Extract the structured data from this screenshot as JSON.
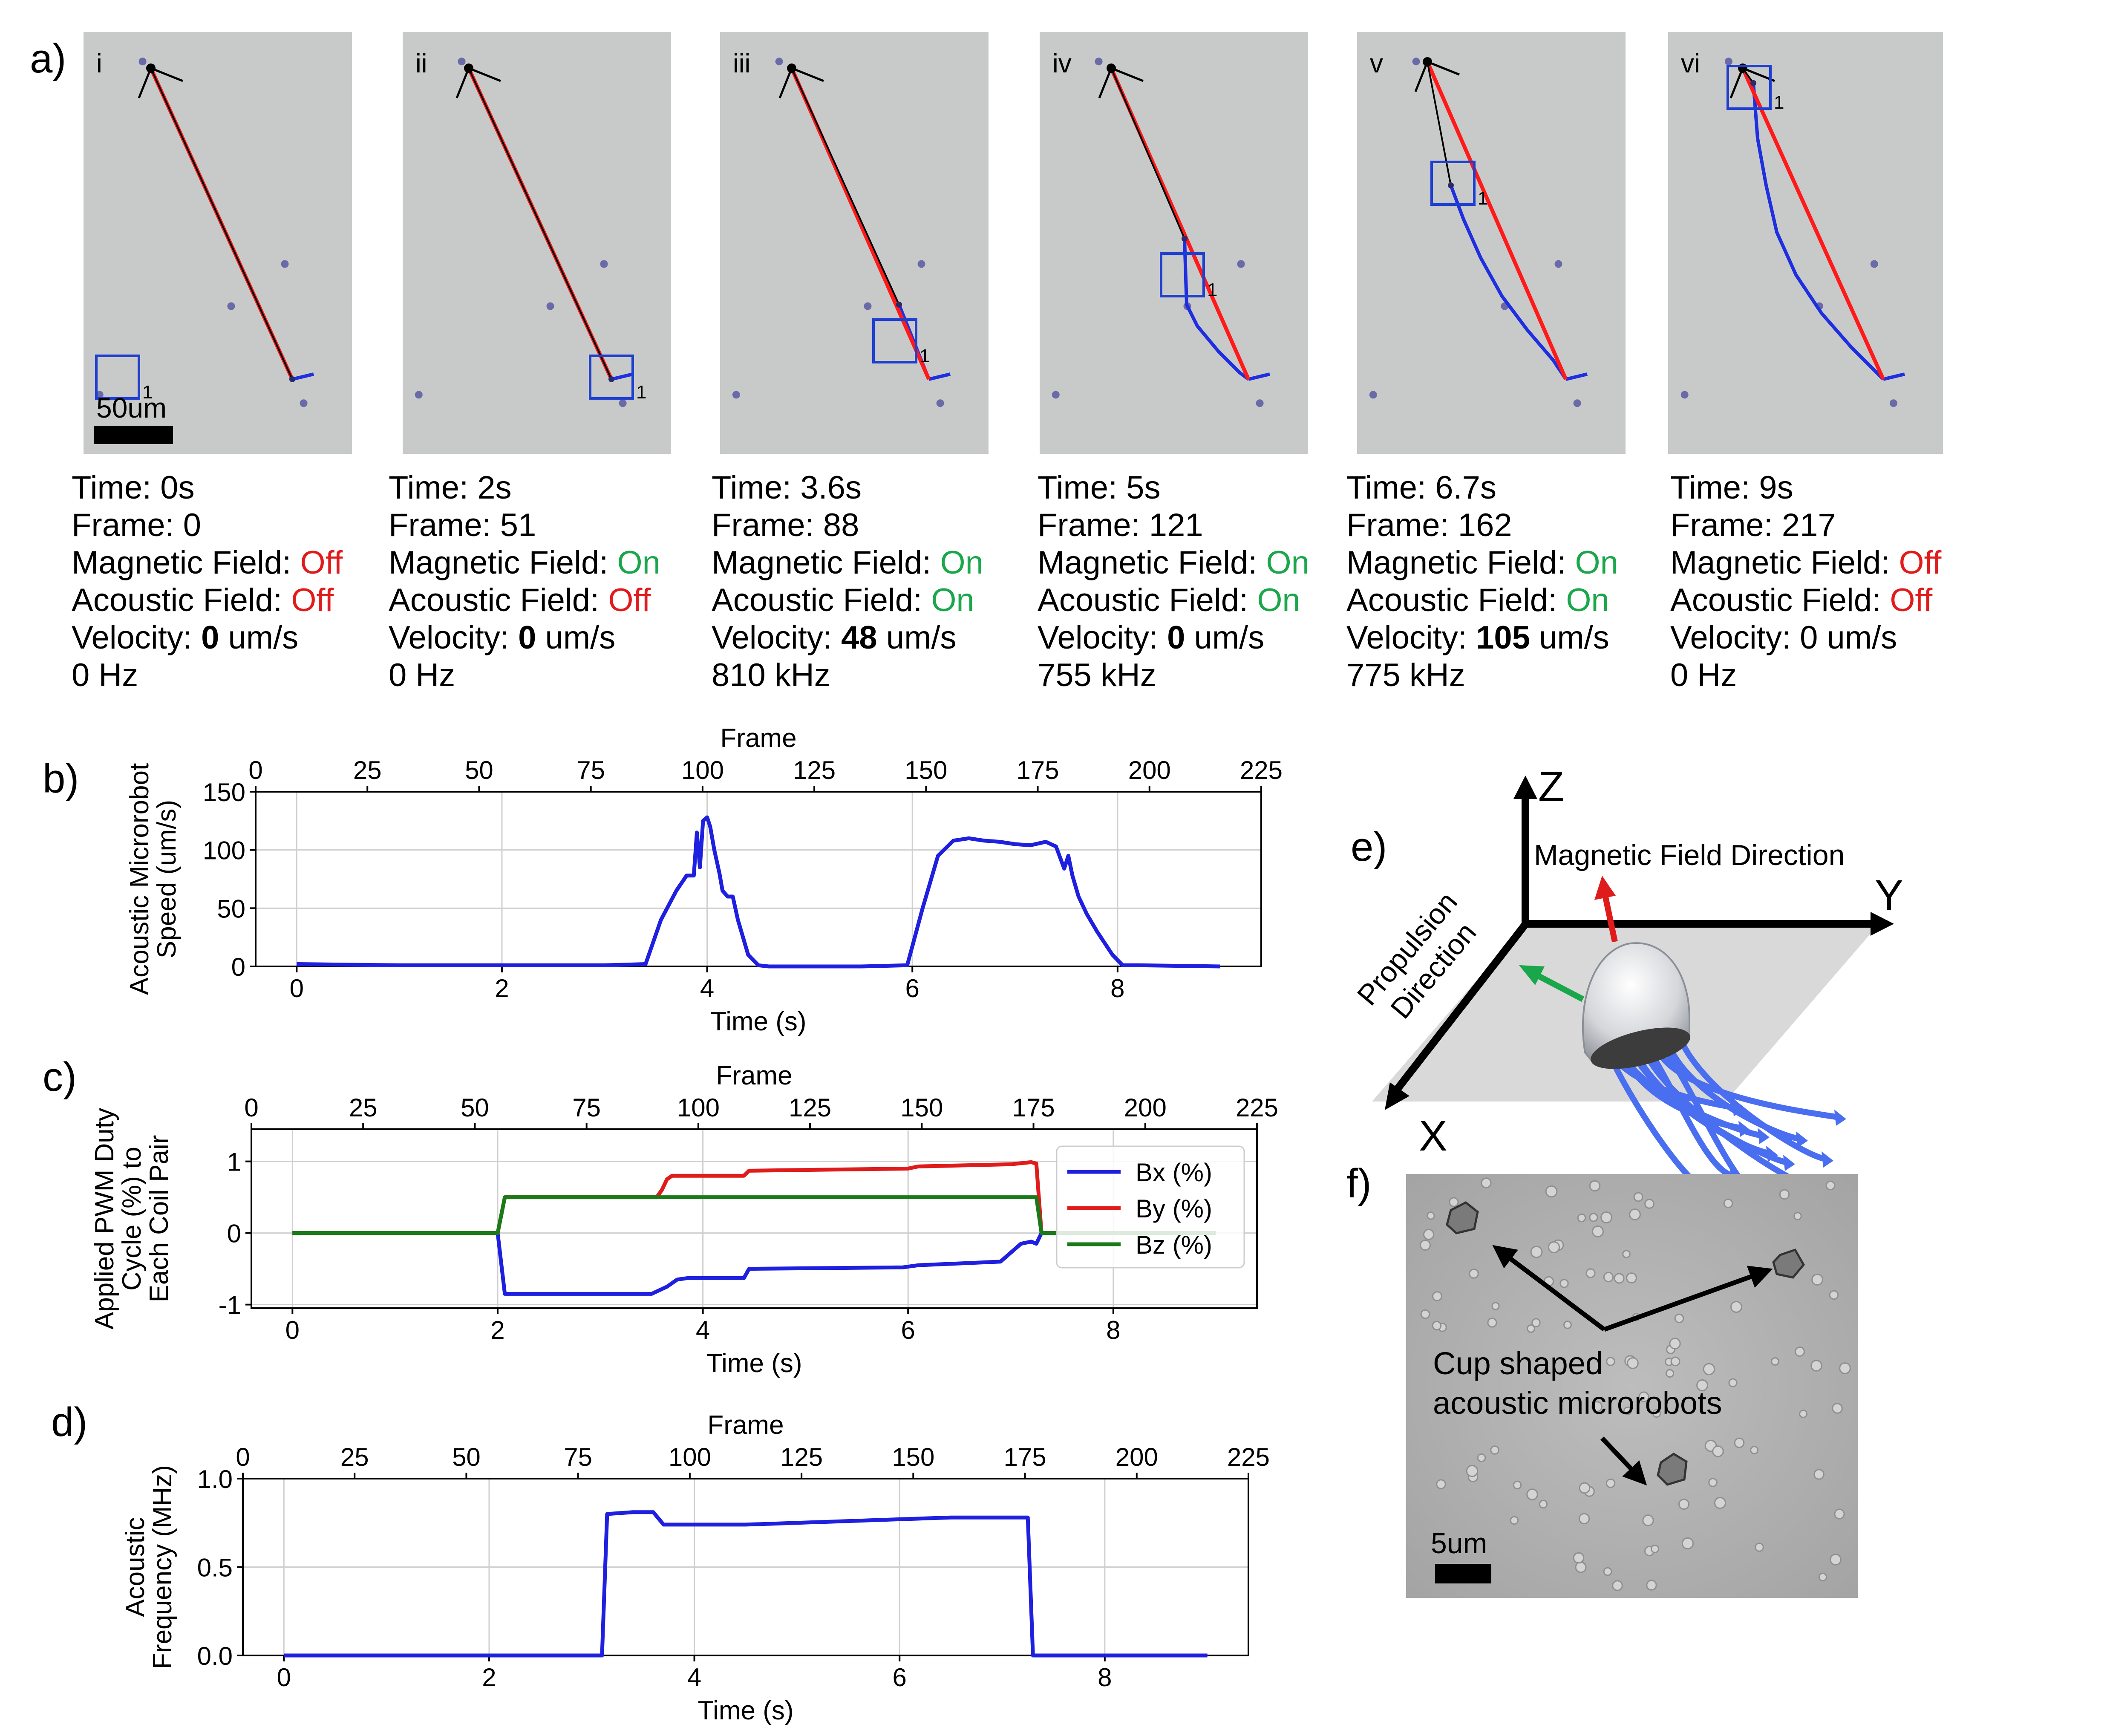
{
  "figure": {
    "panel_labels": {
      "a": "a)",
      "b": "b)",
      "c": "c)",
      "d": "d)",
      "e": "e)",
      "f": "f)"
    },
    "panel_a": {
      "scale_bar_label": "50um",
      "track_id": "1",
      "field_labels": {
        "time": "Time: ",
        "frame": "Frame: ",
        "magnetic": "Magnetic Field: ",
        "acoustic": "Acoustic Field: ",
        "velocity": "Velocity: ",
        "velocity_unit": " um/s"
      },
      "colors": {
        "on": "#1aa64a",
        "off": "#e01b1b",
        "trajectory_red": "#ff1a1a",
        "trajectory_black": "#000000",
        "path_blue": "#1f2fe0",
        "box_blue": "#1f3fd0"
      },
      "frames": [
        {
          "roman": "i",
          "time": "0s",
          "frame": "0",
          "magnetic": "Off",
          "acoustic": "Off",
          "velocity": "0",
          "velocity_bold": true,
          "freq": "0 Hz"
        },
        {
          "roman": "ii",
          "time": "2s",
          "frame": "51",
          "magnetic": "On",
          "acoustic": "Off",
          "velocity": "0",
          "velocity_bold": true,
          "freq": "0 Hz"
        },
        {
          "roman": "iii",
          "time": "3.6s",
          "frame": "88",
          "magnetic": "On",
          "acoustic": "On",
          "velocity": "48",
          "velocity_bold": true,
          "freq": "810 kHz"
        },
        {
          "roman": "iv",
          "time": "5s",
          "frame": "121",
          "magnetic": "On",
          "acoustic": "On",
          "velocity": "0",
          "velocity_bold": true,
          "freq": "755 kHz"
        },
        {
          "roman": "v",
          "time": "6.7s",
          "frame": "162",
          "magnetic": "On",
          "acoustic": "On",
          "velocity": "105",
          "velocity_bold": true,
          "freq": "775 kHz"
        },
        {
          "roman": "vi",
          "time": "9s",
          "frame": "217",
          "magnetic": "Off",
          "acoustic": "Off",
          "velocity": "0",
          "velocity_bold": false,
          "freq": "0 Hz"
        }
      ]
    },
    "panel_e": {
      "axis_x": "X",
      "axis_y": "Y",
      "axis_z": "Z",
      "magnetic_label": "Magnetic Field Direction",
      "propulsion_line1": "Propulsion",
      "propulsion_line2": "Direction",
      "colors": {
        "magnetic": "#e8501e",
        "propulsion": "#1aa64a",
        "flagella": "#4a6ef0"
      }
    },
    "panel_f": {
      "label_line1": "Cup shaped",
      "label_line2": "acoustic microrobots",
      "scale_bar_label": "5um"
    }
  },
  "chart_data": [
    {
      "id": "b",
      "type": "line",
      "title": "",
      "xlabel": "Time (s)",
      "top_xlabel": "Frame",
      "ylabel_lines": [
        "Acoustic Microrobot",
        "Speed (um/s)"
      ],
      "xlim": [
        -0.4,
        9.4
      ],
      "ylim": [
        0,
        150
      ],
      "xticks": [
        0,
        2,
        4,
        6,
        8
      ],
      "yticks": [
        0,
        50,
        100,
        150
      ],
      "top_ticks": [
        0,
        25,
        50,
        75,
        100,
        125,
        150,
        175,
        200,
        225
      ],
      "top_range": [
        0,
        225
      ],
      "grid": true,
      "series": [
        {
          "name": "Speed",
          "color": "#1f1fe0",
          "x": [
            0,
            1,
            2,
            3,
            3.4,
            3.55,
            3.7,
            3.8,
            3.87,
            3.9,
            3.93,
            3.96,
            4.0,
            4.03,
            4.07,
            4.12,
            4.15,
            4.2,
            4.25,
            4.3,
            4.4,
            4.5,
            4.6,
            5.5,
            5.95,
            6.1,
            6.25,
            6.4,
            6.55,
            6.7,
            6.85,
            7.0,
            7.15,
            7.3,
            7.4,
            7.48,
            7.52,
            7.56,
            7.62,
            7.7,
            7.8,
            7.95,
            8.05,
            8.2,
            9.0
          ],
          "y": [
            2,
            1,
            1,
            1,
            2,
            40,
            65,
            78,
            78,
            115,
            85,
            125,
            128,
            120,
            100,
            80,
            65,
            60,
            60,
            40,
            10,
            1,
            0,
            0,
            1,
            50,
            95,
            108,
            110,
            108,
            107,
            105,
            104,
            107,
            103,
            84,
            95,
            78,
            60,
            45,
            30,
            10,
            1,
            1,
            0
          ]
        }
      ]
    },
    {
      "id": "c",
      "type": "line",
      "title": "",
      "xlabel": "Time (s)",
      "top_xlabel": "Frame",
      "ylabel_lines": [
        "Applied PWM Duty",
        "Cycle (%) to",
        "Each Coil Pair"
      ],
      "xlim": [
        -0.4,
        9.4
      ],
      "ylim": [
        -1.05,
        1.45
      ],
      "xticks": [
        0,
        2,
        4,
        6,
        8
      ],
      "yticks": [
        -1,
        0,
        1
      ],
      "top_ticks": [
        0,
        25,
        50,
        75,
        100,
        125,
        150,
        175,
        200,
        225
      ],
      "top_range": [
        0,
        225
      ],
      "grid": true,
      "legend_position": "top-right",
      "series": [
        {
          "name": "Bx (%)",
          "color": "#1f1fe0",
          "x": [
            0,
            2.0,
            2.07,
            3.5,
            3.65,
            3.75,
            3.85,
            4.4,
            4.45,
            5.95,
            6.1,
            6.9,
            7.1,
            7.2,
            7.25,
            7.3,
            9.0
          ],
          "y": [
            0,
            0,
            -0.85,
            -0.85,
            -0.75,
            -0.65,
            -0.63,
            -0.63,
            -0.5,
            -0.48,
            -0.45,
            -0.4,
            -0.15,
            -0.12,
            -0.15,
            0,
            0
          ]
        },
        {
          "name": "By (%)",
          "color": "#e01b1b",
          "x": [
            0,
            2.0,
            2.07,
            3.55,
            3.6,
            3.65,
            3.7,
            4.4,
            4.45,
            6.0,
            6.1,
            7.0,
            7.2,
            7.25,
            7.3,
            9.0
          ],
          "y": [
            0,
            0,
            0.5,
            0.5,
            0.6,
            0.75,
            0.8,
            0.8,
            0.87,
            0.9,
            0.93,
            0.96,
            0.99,
            0.97,
            0,
            0
          ]
        },
        {
          "name": "Bz (%)",
          "color": "#1a7a1a",
          "x": [
            0,
            2.0,
            2.07,
            7.25,
            7.3,
            9.0
          ],
          "y": [
            0,
            0,
            0.5,
            0.5,
            0,
            0
          ]
        }
      ]
    },
    {
      "id": "d",
      "type": "line",
      "title": "",
      "xlabel": "Time (s)",
      "top_xlabel": "Frame",
      "ylabel_lines": [
        "Acoustic",
        "Frequency (MHz)"
      ],
      "xlim": [
        -0.4,
        9.4
      ],
      "ylim": [
        0,
        1.0
      ],
      "xticks": [
        0,
        2,
        4,
        6,
        8
      ],
      "yticks": [
        0.0,
        0.5,
        1.0
      ],
      "ytick_labels": [
        "0.0",
        "0.5",
        "1.0"
      ],
      "top_ticks": [
        0,
        25,
        50,
        75,
        100,
        125,
        150,
        175,
        200,
        225
      ],
      "top_range": [
        0,
        225
      ],
      "grid": true,
      "series": [
        {
          "name": "Frequency",
          "color": "#1f1fe0",
          "x": [
            0,
            3.1,
            3.15,
            3.4,
            3.6,
            3.7,
            4.5,
            5.0,
            5.5,
            6.0,
            6.5,
            7.25,
            7.3,
            9.0
          ],
          "y": [
            0,
            0,
            0.8,
            0.81,
            0.81,
            0.74,
            0.74,
            0.75,
            0.76,
            0.77,
            0.78,
            0.78,
            0,
            0
          ]
        }
      ]
    }
  ]
}
